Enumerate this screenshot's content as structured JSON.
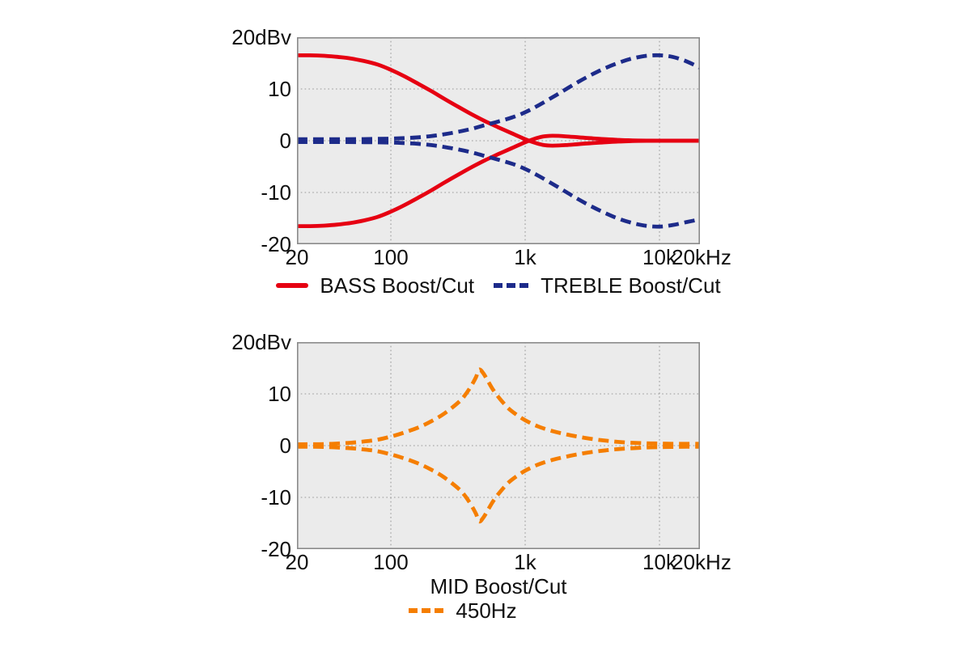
{
  "colors": {
    "bass": "#e60012",
    "treble": "#1d2b8a",
    "mid": "#f57e00",
    "plot_bg": "#ebebeb",
    "grid": "#9a9a9a",
    "frame": "#8a8a8a",
    "text": "#101010",
    "page_bg": "#ffffff"
  },
  "axes": {
    "y_unit_label": "20dBv",
    "y_ticks": [
      "20dBv",
      "10",
      "0",
      "-10",
      "-20"
    ],
    "y_tick_values": [
      20,
      10,
      0,
      -10,
      -20
    ],
    "x_ticks": [
      "20",
      "100",
      "1k",
      "10k",
      "20kHz"
    ],
    "x_tick_values": [
      20,
      100,
      1000,
      10000,
      20000
    ],
    "x_grid": [
      100,
      1000,
      10000
    ],
    "y_grid": [
      10,
      0,
      -10
    ],
    "x_range": [
      20,
      20000
    ],
    "y_range": [
      -20,
      20
    ],
    "x_scale": "log"
  },
  "chart_data": [
    {
      "type": "line",
      "title": "",
      "xlabel": "",
      "ylabel": "20dBv",
      "x_scale": "log",
      "x_range": [
        20,
        20000
      ],
      "y_range": [
        -20,
        20
      ],
      "grid": true,
      "legend_position": "bottom",
      "legend": [
        {
          "label": "BASS Boost/Cut",
          "color": "bass",
          "style": "solid"
        },
        {
          "label": "TREBLE Boost/Cut",
          "color": "treble",
          "style": "dashed"
        }
      ],
      "series": [
        {
          "name": "BASS boost",
          "color": "bass",
          "dashed": false,
          "points": [
            [
              20,
              16.5
            ],
            [
              25,
              16.5
            ],
            [
              32,
              16.4
            ],
            [
              40,
              16.2
            ],
            [
              50,
              15.9
            ],
            [
              63,
              15.4
            ],
            [
              80,
              14.7
            ],
            [
              100,
              13.7
            ],
            [
              125,
              12.5
            ],
            [
              160,
              11.0
            ],
            [
              200,
              9.6
            ],
            [
              250,
              8.1
            ],
            [
              320,
              6.5
            ],
            [
              400,
              5.1
            ],
            [
              500,
              3.8
            ],
            [
              630,
              2.6
            ],
            [
              800,
              1.4
            ],
            [
              1000,
              0.3
            ],
            [
              1150,
              -0.3
            ],
            [
              1350,
              -0.8
            ],
            [
              1600,
              -0.95
            ],
            [
              2000,
              -0.85
            ],
            [
              2500,
              -0.65
            ],
            [
              3200,
              -0.45
            ],
            [
              4000,
              -0.28
            ],
            [
              5000,
              -0.15
            ],
            [
              6300,
              -0.07
            ],
            [
              8000,
              -0.02
            ],
            [
              10000,
              0
            ],
            [
              14000,
              0
            ],
            [
              20000,
              0
            ]
          ]
        },
        {
          "name": "BASS cut",
          "color": "bass",
          "dashed": false,
          "points": [
            [
              20,
              -16.5
            ],
            [
              25,
              -16.5
            ],
            [
              32,
              -16.4
            ],
            [
              40,
              -16.2
            ],
            [
              50,
              -15.9
            ],
            [
              63,
              -15.4
            ],
            [
              80,
              -14.7
            ],
            [
              100,
              -13.7
            ],
            [
              125,
              -12.5
            ],
            [
              160,
              -11.0
            ],
            [
              200,
              -9.6
            ],
            [
              250,
              -8.1
            ],
            [
              320,
              -6.5
            ],
            [
              400,
              -5.1
            ],
            [
              500,
              -3.8
            ],
            [
              630,
              -2.6
            ],
            [
              800,
              -1.4
            ],
            [
              1000,
              -0.3
            ],
            [
              1150,
              0.3
            ],
            [
              1350,
              0.8
            ],
            [
              1600,
              0.95
            ],
            [
              2000,
              0.85
            ],
            [
              2500,
              0.65
            ],
            [
              3200,
              0.45
            ],
            [
              4000,
              0.28
            ],
            [
              5000,
              0.15
            ],
            [
              6300,
              0.07
            ],
            [
              8000,
              0.02
            ],
            [
              10000,
              0
            ],
            [
              14000,
              0
            ],
            [
              20000,
              0
            ]
          ]
        },
        {
          "name": "TREBLE boost",
          "color": "treble",
          "dashed": true,
          "points": [
            [
              20,
              0.3
            ],
            [
              40,
              0.3
            ],
            [
              63,
              0.32
            ],
            [
              100,
              0.4
            ],
            [
              125,
              0.5
            ],
            [
              160,
              0.65
            ],
            [
              200,
              0.9
            ],
            [
              250,
              1.25
            ],
            [
              320,
              1.75
            ],
            [
              400,
              2.3
            ],
            [
              500,
              3.0
            ],
            [
              630,
              3.7
            ],
            [
              800,
              4.5
            ],
            [
              1000,
              5.5
            ],
            [
              1250,
              6.8
            ],
            [
              1600,
              8.4
            ],
            [
              2000,
              9.9
            ],
            [
              2500,
              11.4
            ],
            [
              3200,
              12.9
            ],
            [
              4000,
              14.1
            ],
            [
              5000,
              15.1
            ],
            [
              6300,
              15.9
            ],
            [
              8000,
              16.4
            ],
            [
              10000,
              16.5
            ],
            [
              12500,
              16.2
            ],
            [
              16000,
              15.3
            ],
            [
              20000,
              14.1
            ]
          ]
        },
        {
          "name": "TREBLE cut",
          "color": "treble",
          "dashed": true,
          "points": [
            [
              20,
              -0.25
            ],
            [
              40,
              -0.25
            ],
            [
              63,
              -0.28
            ],
            [
              100,
              -0.35
            ],
            [
              125,
              -0.45
            ],
            [
              160,
              -0.6
            ],
            [
              200,
              -0.85
            ],
            [
              250,
              -1.2
            ],
            [
              320,
              -1.7
            ],
            [
              400,
              -2.25
            ],
            [
              500,
              -2.95
            ],
            [
              630,
              -3.65
            ],
            [
              800,
              -4.45
            ],
            [
              1000,
              -5.45
            ],
            [
              1250,
              -6.75
            ],
            [
              1600,
              -8.35
            ],
            [
              2000,
              -9.85
            ],
            [
              2500,
              -11.35
            ],
            [
              3200,
              -12.85
            ],
            [
              4000,
              -14.05
            ],
            [
              5000,
              -15.1
            ],
            [
              6300,
              -15.9
            ],
            [
              8000,
              -16.45
            ],
            [
              10000,
              -16.6
            ],
            [
              12500,
              -16.3
            ],
            [
              16000,
              -15.7
            ],
            [
              20000,
              -15.2
            ]
          ]
        }
      ]
    },
    {
      "type": "line",
      "title": "",
      "xlabel": "MID Boost/Cut",
      "ylabel": "20dBv",
      "x_scale": "log",
      "x_range": [
        20,
        20000
      ],
      "y_range": [
        -20,
        20
      ],
      "grid": true,
      "legend_position": "bottom",
      "center_frequency_hz": 450,
      "legend": [
        {
          "label": "450Hz",
          "color": "mid",
          "style": "dashed"
        }
      ],
      "series": [
        {
          "name": "MID boost",
          "color": "mid",
          "dashed": true,
          "points": [
            [
              20,
              0.25
            ],
            [
              32,
              0.3
            ],
            [
              50,
              0.55
            ],
            [
              63,
              0.8
            ],
            [
              80,
              1.15
            ],
            [
              100,
              1.75
            ],
            [
              125,
              2.5
            ],
            [
              160,
              3.5
            ],
            [
              200,
              4.7
            ],
            [
              250,
              6.2
            ],
            [
              320,
              8.4
            ],
            [
              360,
              9.9
            ],
            [
              400,
              11.7
            ],
            [
              430,
              13.2
            ],
            [
              455,
              14.7
            ],
            [
              490,
              13.9
            ],
            [
              530,
              12.4
            ],
            [
              580,
              10.7
            ],
            [
              650,
              9.0
            ],
            [
              750,
              7.2
            ],
            [
              850,
              6.1
            ],
            [
              1000,
              4.9
            ],
            [
              1250,
              3.7
            ],
            [
              1600,
              2.8
            ],
            [
              2000,
              2.2
            ],
            [
              2500,
              1.7
            ],
            [
              3200,
              1.25
            ],
            [
              4000,
              0.95
            ],
            [
              5000,
              0.7
            ],
            [
              6300,
              0.55
            ],
            [
              8000,
              0.45
            ],
            [
              10000,
              0.4
            ],
            [
              12500,
              0.35
            ],
            [
              16000,
              0.35
            ],
            [
              20000,
              0.35
            ]
          ]
        },
        {
          "name": "MID cut",
          "color": "mid",
          "dashed": true,
          "points": [
            [
              20,
              -0.2
            ],
            [
              32,
              -0.25
            ],
            [
              50,
              -0.5
            ],
            [
              63,
              -0.75
            ],
            [
              80,
              -1.1
            ],
            [
              100,
              -1.7
            ],
            [
              125,
              -2.45
            ],
            [
              160,
              -3.45
            ],
            [
              200,
              -4.65
            ],
            [
              250,
              -6.15
            ],
            [
              320,
              -8.35
            ],
            [
              360,
              -9.85
            ],
            [
              400,
              -11.65
            ],
            [
              430,
              -13.15
            ],
            [
              455,
              -14.65
            ],
            [
              490,
              -13.85
            ],
            [
              530,
              -12.35
            ],
            [
              580,
              -10.65
            ],
            [
              650,
              -8.95
            ],
            [
              750,
              -7.15
            ],
            [
              850,
              -6.05
            ],
            [
              1000,
              -4.85
            ],
            [
              1250,
              -3.65
            ],
            [
              1600,
              -2.75
            ],
            [
              2000,
              -2.15
            ],
            [
              2500,
              -1.65
            ],
            [
              3200,
              -1.2
            ],
            [
              4000,
              -0.9
            ],
            [
              5000,
              -0.65
            ],
            [
              6300,
              -0.5
            ],
            [
              8000,
              -0.35
            ],
            [
              10000,
              -0.3
            ],
            [
              12500,
              -0.25
            ],
            [
              16000,
              -0.22
            ],
            [
              20000,
              -0.2
            ]
          ]
        }
      ]
    }
  ]
}
